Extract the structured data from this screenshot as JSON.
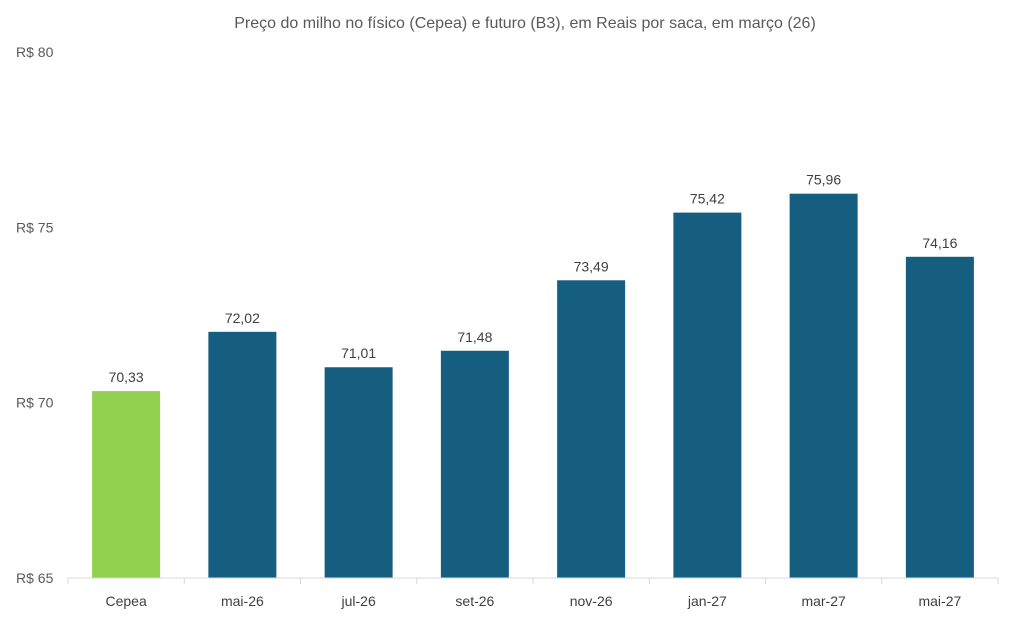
{
  "chart_data": {
    "type": "bar",
    "title": "Preço do milho no físico (Cepea) e futuro (B3), em Reais por saca, em março (26)",
    "xlabel": "",
    "ylabel": "",
    "categories": [
      "Cepea",
      "mai-26",
      "jul-26",
      "set-26",
      "nov-26",
      "jan-27",
      "mar-27",
      "mai-27"
    ],
    "values": [
      70.33,
      72.02,
      71.01,
      71.48,
      73.49,
      75.42,
      75.96,
      74.16
    ],
    "value_labels": [
      "70,33",
      "72,02",
      "71,01",
      "71,48",
      "73,49",
      "75,42",
      "75,96",
      "74,16"
    ],
    "bar_colors": [
      "#92d050",
      "#165e7f",
      "#165e7f",
      "#165e7f",
      "#165e7f",
      "#165e7f",
      "#165e7f",
      "#165e7f"
    ],
    "ylim": [
      65,
      80
    ],
    "yticks": [
      65,
      70,
      75,
      80
    ],
    "ytick_labels": [
      "R$ 65",
      "R$ 70",
      "R$ 75",
      "R$ 80"
    ],
    "grid": false,
    "legend": "none"
  }
}
